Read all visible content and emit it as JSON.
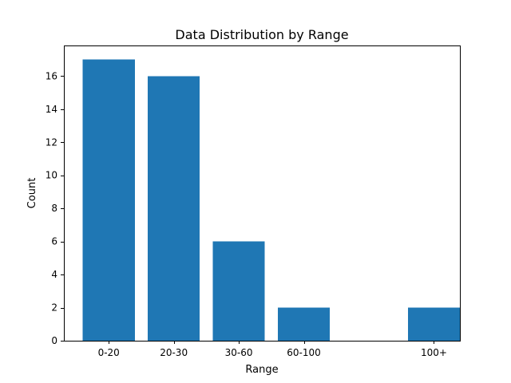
{
  "chart_data": {
    "type": "bar",
    "title": "Data Distribution by Range",
    "xlabel": "Range",
    "ylabel": "Count",
    "categories": [
      "0-20",
      "20-30",
      "30-60",
      "60-100",
      "100+"
    ],
    "x_positions": [
      0,
      1,
      2,
      3,
      5
    ],
    "values": [
      17,
      16,
      6,
      2,
      2
    ],
    "ylim": [
      0,
      17.85
    ],
    "yticks": [
      0,
      2,
      4,
      6,
      8,
      10,
      12,
      14,
      16
    ],
    "bar_color": "#1f77b4",
    "grid": false,
    "legend": "none"
  }
}
